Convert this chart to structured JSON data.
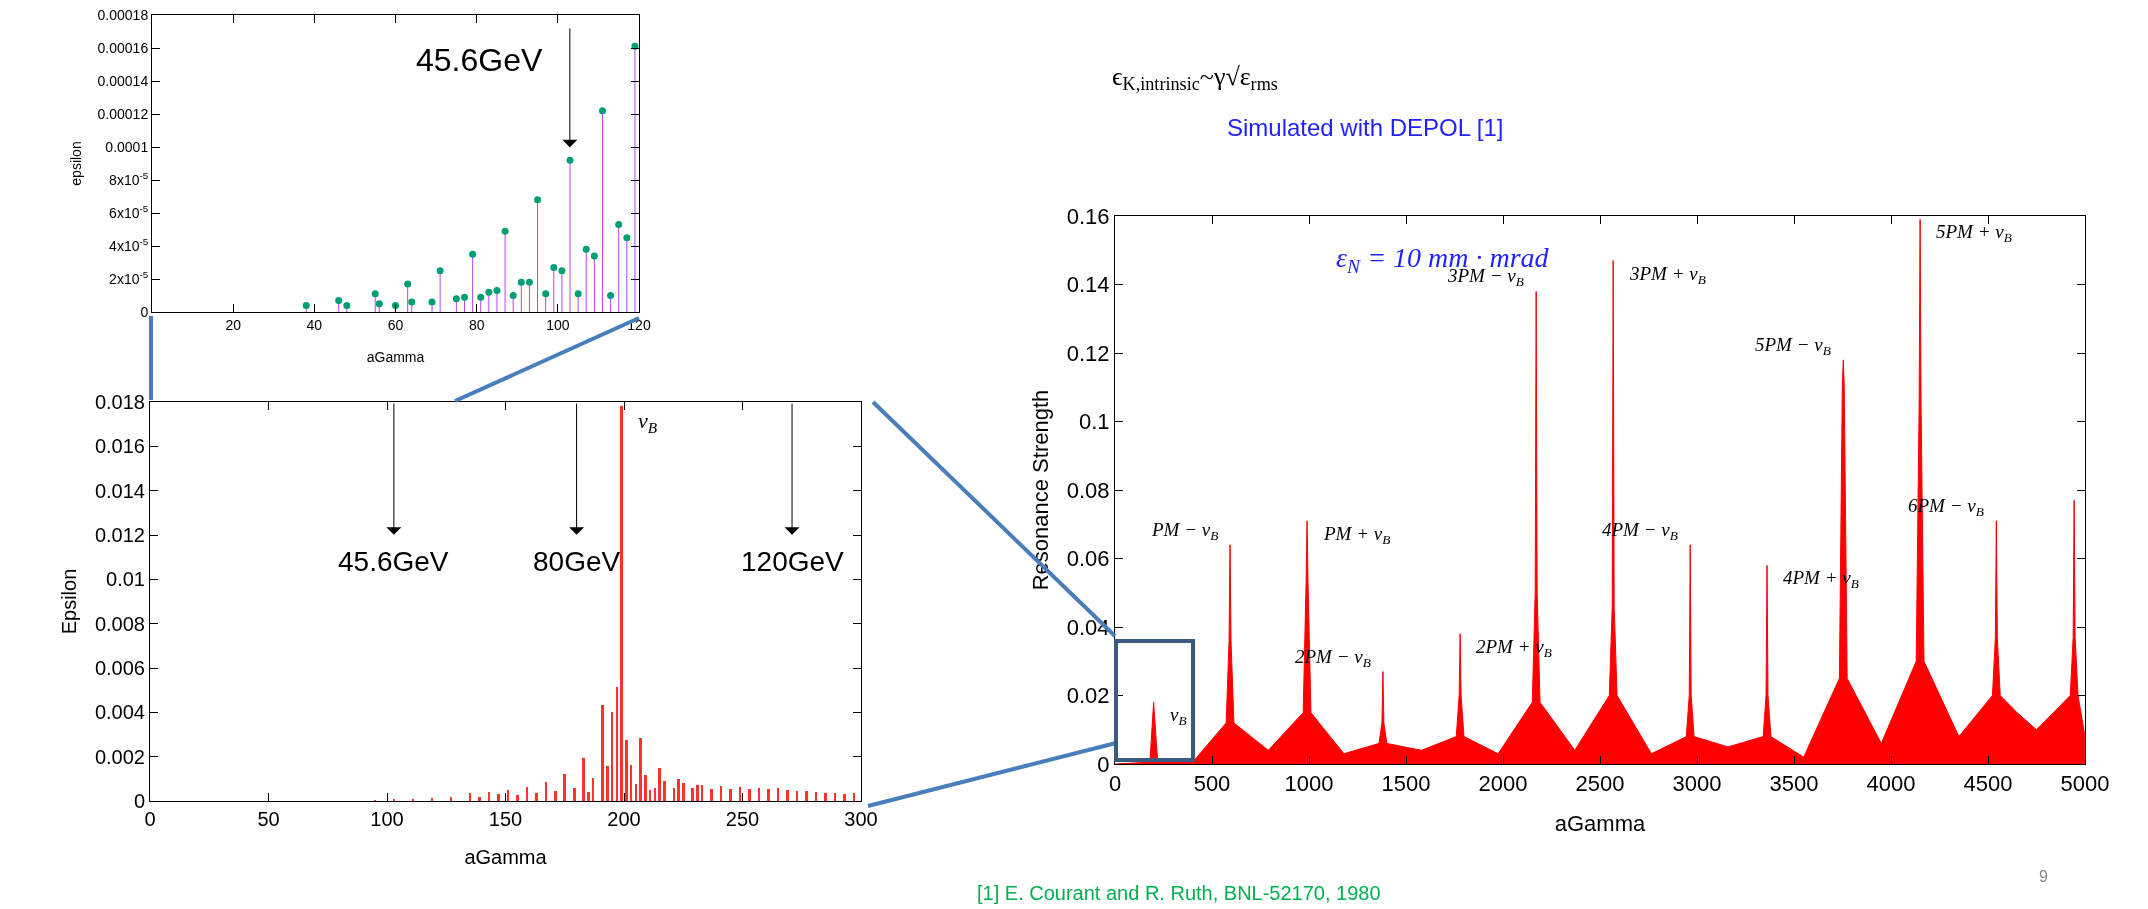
{
  "chart_data": [
    {
      "type": "lollipop",
      "xlabel": "aGamma",
      "ylabel": "epsilon",
      "marker": "circle",
      "x": [
        38,
        46,
        48,
        55,
        56,
        60,
        63,
        64,
        69,
        71,
        75,
        77,
        79,
        81,
        83,
        85,
        87,
        89,
        91,
        93,
        95,
        97,
        99,
        101,
        103,
        105,
        107,
        109,
        111,
        113,
        115,
        117,
        119
      ],
      "series": [
        {
          "color": "#009e73",
          "values": [
            4e-06,
            7e-06,
            4e-06,
            1.1e-05,
            5e-06,
            4e-06,
            1.7e-05,
            6e-06,
            6e-06,
            2.5e-05,
            8e-06,
            9e-06,
            3.5e-05,
            9e-06,
            1.2e-05,
            1.3e-05,
            4.9e-05,
            1e-05,
            1.8e-05,
            1.8e-05,
            6.8e-05,
            1.1e-05,
            2.7e-05,
            2.5e-05,
            9.2e-05,
            1.1e-05,
            3.8e-05,
            3.4e-05,
            0.000122,
            1e-05,
            5.3e-05,
            4.5e-05,
            0.000161
          ]
        }
      ],
      "xlim": [
        0,
        120
      ],
      "xticks": [
        20,
        40,
        60,
        80,
        100,
        120
      ],
      "ylim": [
        0,
        0.00018
      ],
      "yticks": [
        0,
        {
          "value": 2e-05,
          "label": "2x10$^{-5}$"
        },
        {
          "value": 4e-05,
          "label": "4x10$^{-5}$"
        },
        {
          "value": 6e-05,
          "label": "6x10$^{-5}$"
        },
        {
          "value": 8e-05,
          "label": "8x10$^{-5}$"
        },
        0.0001,
        0.00012,
        0.00014,
        0.00016,
        0.00018
      ],
      "annotations": [
        "45.6GeV"
      ]
    },
    {
      "type": "bar",
      "xlabel": "aGamma",
      "ylabel": "Epsilon",
      "x": [
        95,
        103,
        111,
        119,
        127,
        135,
        139,
        143,
        147,
        151,
        155,
        159,
        163,
        167,
        171,
        175,
        179,
        183,
        185,
        187,
        191,
        193,
        195,
        197,
        199,
        201,
        203,
        205,
        207,
        209,
        211,
        213,
        215,
        217,
        221,
        223,
        225,
        229,
        231,
        233,
        237,
        241,
        245,
        249,
        253,
        257,
        261,
        265,
        269,
        273,
        277,
        281,
        285,
        289,
        293,
        297
      ],
      "series": [
        {
          "color": "#ff3030",
          "values": [
            5e-05,
            7e-05,
            0.0001,
            0.00015,
            0.00017,
            0.00034,
            0.0002,
            0.0004,
            0.0003,
            0.00048,
            0.00027,
            0.00065,
            0.00034,
            0.00087,
            0.00043,
            0.0012,
            0.0006,
            0.00193,
            0.0004,
            0.00104,
            0.00434,
            0.00159,
            0.00402,
            0.00513,
            0.0178,
            0.00277,
            0.00161,
            0.00075,
            0.00284,
            0.00116,
            0.00048,
            0.00058,
            0.0015,
            0.00089,
            0.00058,
            0.00099,
            0.0008,
            0.00058,
            0.0007,
            0.00072,
            0.00055,
            0.00067,
            0.00055,
            0.00065,
            0.00055,
            0.0006,
            0.00053,
            0.00058,
            0.0005,
            0.00046,
            0.00043,
            0.0004,
            0.00036,
            0.00034,
            0.0003,
            0.00034
          ]
        }
      ],
      "xlim": [
        0,
        300
      ],
      "xticks": [
        0,
        50,
        100,
        150,
        200,
        250,
        300
      ],
      "ylim": [
        0,
        0.018
      ],
      "yticks": [
        0,
        0.002,
        0.004,
        0.006,
        0.008,
        0.01,
        0.012,
        0.014,
        0.016,
        0.018
      ],
      "annotations": [
        {
          "text": "ν$_{B}$",
          "x": 199,
          "y": 0.0178
        },
        "45.6GeV",
        "80GeV",
        "120GeV"
      ]
    },
    {
      "type": "area",
      "title": "Simulated with DEPOL [1]",
      "xlabel": "aGamma",
      "ylabel": "Resonance Strength",
      "x": [
        0,
        100,
        180,
        199,
        220,
        400,
        573,
        588,
        593,
        598,
        613,
        790,
        970,
        985,
        990,
        995,
        1010,
        1180,
        1361,
        1376,
        1381,
        1386,
        1401,
        1580,
        1759,
        1774,
        1779,
        1784,
        1799,
        1975,
        2151,
        2166,
        2171,
        2176,
        2191,
        2370,
        2548,
        2563,
        2568,
        2573,
        2588,
        2765,
        2945,
        2960,
        2965,
        2970,
        2985,
        3160,
        3341,
        3356,
        3361,
        3366,
        3381,
        3550,
        3734,
        3749,
        3754,
        3759,
        3774,
        3950,
        4130,
        4145,
        4150,
        4155,
        4170,
        4350,
        4523,
        4538,
        4543,
        4548,
        4563,
        4650,
        4750,
        4924,
        4939,
        4944,
        4949,
        4964,
        5000
      ],
      "series": [
        {
          "color": "#ff0000",
          "values": [
            0,
            0.0003,
            0.0005,
            0.018,
            0.0005,
            0.0005,
            0.012,
            0.036,
            0.064,
            0.036,
            0.012,
            0.004,
            0.015,
            0.053,
            0.071,
            0.053,
            0.015,
            0.003,
            0.006,
            0.012,
            0.027,
            0.012,
            0.006,
            0.004,
            0.008,
            0.02,
            0.038,
            0.02,
            0.008,
            0.003,
            0.018,
            0.05,
            0.138,
            0.05,
            0.018,
            0.004,
            0.02,
            0.046,
            0.147,
            0.046,
            0.02,
            0.003,
            0.008,
            0.02,
            0.064,
            0.02,
            0.008,
            0.005,
            0.008,
            0.02,
            0.058,
            0.02,
            0.008,
            0.002,
            0.025,
            0.11,
            0.118,
            0.11,
            0.025,
            0.006,
            0.03,
            0.105,
            0.159,
            0.105,
            0.03,
            0.008,
            0.02,
            0.037,
            0.071,
            0.037,
            0.02,
            0.015,
            0.01,
            0.02,
            0.037,
            0.077,
            0.037,
            0.02,
            0.008
          ]
        }
      ],
      "xlim": [
        0,
        5000
      ],
      "xticks": [
        0,
        500,
        1000,
        1500,
        2000,
        2500,
        3000,
        3500,
        4000,
        4500,
        5000
      ],
      "ylim": [
        0,
        0.16
      ],
      "yticks": [
        0,
        0.02,
        0.04,
        0.06,
        0.08,
        0.1,
        0.12,
        0.14,
        0.16
      ],
      "annotations": [
        "ϵ$_{K,intrinsic}$~γ√ε$_{rms}$",
        "ε$_{N}$ = 10 mm · mrad",
        "[1] E. Courant and R. Ruth, BNL-52170, 1980",
        "9",
        {
          "text": "ν$_{B}$",
          "x": 199,
          "y": 0.018
        },
        {
          "text": "PM − ν$_{B}$",
          "x": 593,
          "y": 0.064
        },
        {
          "text": "PM + ν$_{B}$",
          "x": 990,
          "y": 0.071
        },
        {
          "text": "2PM − ν$_{B}$",
          "x": 1381,
          "y": 0.027
        },
        {
          "text": "2PM + ν$_{B}$",
          "x": 1779,
          "y": 0.038
        },
        {
          "text": "3PM − ν$_{B}$",
          "x": 2171,
          "y": 0.138
        },
        {
          "text": "3PM + ν$_{B}$",
          "x": 2568,
          "y": 0.147
        },
        {
          "text": "4PM − ν$_{B}$",
          "x": 2965,
          "y": 0.064
        },
        {
          "text": "4PM + ν$_{B}$",
          "x": 3361,
          "y": 0.058
        },
        {
          "text": "5PM − ν$_{B}$",
          "x": 3754,
          "y": 0.118
        },
        {
          "text": "5PM + ν$_{B}$",
          "x": 4150,
          "y": 0.159
        },
        {
          "text": "6PM − ν$_{B}$",
          "x": 4543,
          "y": 0.071
        }
      ]
    }
  ]
}
